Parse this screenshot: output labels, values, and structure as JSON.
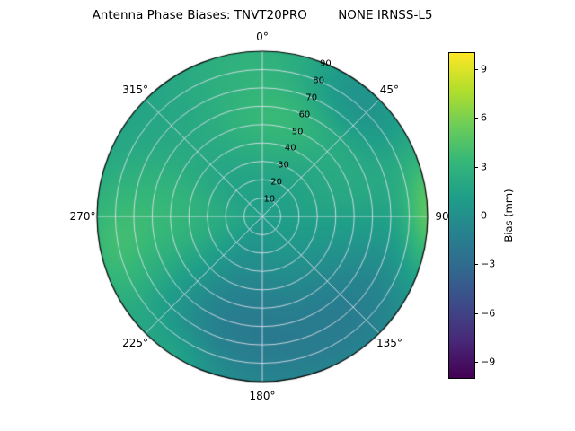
{
  "chart_data": {
    "type": "heatmap",
    "projection": "polar",
    "title": "Antenna Phase Biases: TNVT20PRO        NONE IRNSS-L5",
    "angular_axis": {
      "direction": "clockwise",
      "zero_position": "top",
      "theta_labels": [
        {
          "az": 0,
          "label": "0°"
        },
        {
          "az": 45,
          "label": "45°"
        },
        {
          "az": 90,
          "label": "90"
        },
        {
          "az": 135,
          "label": "135°"
        },
        {
          "az": 180,
          "label": "180°"
        },
        {
          "az": 225,
          "label": "225°"
        },
        {
          "az": 270,
          "label": "270°"
        },
        {
          "az": 315,
          "label": "315°"
        }
      ]
    },
    "radial_axis": {
      "range": [
        0,
        90
      ],
      "label_angle": 22.5,
      "ticks": [
        {
          "r": 10,
          "label": "10"
        },
        {
          "r": 20,
          "label": "20"
        },
        {
          "r": 30,
          "label": "30"
        },
        {
          "r": 40,
          "label": "40"
        },
        {
          "r": 50,
          "label": "50"
        },
        {
          "r": 60,
          "label": "60"
        },
        {
          "r": 70,
          "label": "70"
        },
        {
          "r": 80,
          "label": "80"
        },
        {
          "r": 90,
          "label": "90"
        }
      ]
    },
    "colorbar": {
      "label": "Bias (mm)",
      "vmin": -10,
      "vmax": 10,
      "ticks": [
        {
          "value": 9,
          "label": "9"
        },
        {
          "value": 6,
          "label": "6"
        },
        {
          "value": 3,
          "label": "3"
        },
        {
          "value": 0,
          "label": "0"
        },
        {
          "value": -3,
          "label": "−3"
        },
        {
          "value": -6,
          "label": "−6"
        },
        {
          "value": -9,
          "label": "−9"
        }
      ],
      "colormap": {
        "name": "viridis",
        "stops": [
          "#440154",
          "#482878",
          "#3e4a89",
          "#31688e",
          "#26828e",
          "#1f9e89",
          "#35b779",
          "#6dcd59",
          "#b4de2c",
          "#fde725"
        ]
      }
    },
    "field": {
      "description": "Bias (mm) vs azimuth (deg, clockwise from top) and radius (0-90); value = base + sum of gaussian bumps",
      "base": 1.2,
      "bumps": [
        {
          "az": 350,
          "r": 58,
          "saz": 28,
          "sr": 22,
          "amp": 1.8
        },
        {
          "az": 22,
          "r": 55,
          "saz": 20,
          "sr": 18,
          "amp": 1.2
        },
        {
          "az": 38,
          "r": 80,
          "saz": 16,
          "sr": 14,
          "amp": -1.8
        },
        {
          "az": 90,
          "r": 92,
          "saz": 16,
          "sr": 11,
          "amp": 4.0
        },
        {
          "az": 72,
          "r": 55,
          "saz": 22,
          "sr": 22,
          "amp": 1.0
        },
        {
          "az": 140,
          "r": 72,
          "saz": 30,
          "sr": 28,
          "amp": -2.6
        },
        {
          "az": 196,
          "r": 60,
          "saz": 26,
          "sr": 30,
          "amp": -2.4
        },
        {
          "az": 270,
          "r": 55,
          "saz": 28,
          "sr": 26,
          "amp": 2.2
        },
        {
          "az": 255,
          "r": 85,
          "saz": 18,
          "sr": 14,
          "amp": 1.6
        },
        {
          "az": 212,
          "r": 88,
          "saz": 12,
          "sr": 10,
          "amp": 1.4
        },
        {
          "az": 320,
          "r": 65,
          "saz": 24,
          "sr": 22,
          "amp": -0.6
        },
        {
          "az": 358,
          "r": 90,
          "saz": 26,
          "sr": 12,
          "amp": 1.0
        }
      ]
    },
    "grid": {
      "angular_step_deg": 45,
      "radial_step": 10,
      "grid_on": true
    }
  }
}
